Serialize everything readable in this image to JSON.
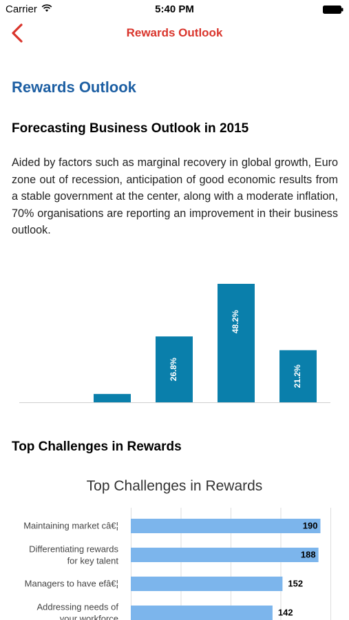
{
  "status_bar": {
    "carrier": "Carrier",
    "time": "5:40 PM"
  },
  "nav": {
    "title": "Rewards Outlook"
  },
  "page": {
    "heading": "Rewards Outlook",
    "section1_title": "Forecasting Business Outlook in 2015",
    "intro_paragraph": "Aided by factors such as marginal recovery in global growth, Euro zone out of recession, anticipation of good economic results from a stable government at the center, along with a moderate inflation, 70% organisations are reporting an improvement in their business outlook.",
    "section2_title": "Top Challenges in Rewards"
  },
  "colors": {
    "accent_red": "#d9342b",
    "heading_blue": "#1d5fa3",
    "bar_teal": "#0a7fab",
    "bar_light_blue": "#7cb5ec"
  },
  "icons": {
    "back": "chevron-left-icon",
    "wifi": "wifi-icon",
    "battery": "battery-icon"
  },
  "chart_data": [
    {
      "type": "bar",
      "categories": [
        "",
        "",
        "",
        "",
        ""
      ],
      "values": [
        0,
        3.4,
        26.8,
        48.2,
        21.2
      ],
      "data_labels": [
        "",
        "",
        "26.8%",
        "48.2%",
        "21.2%"
      ],
      "ylim": [
        0,
        48.2
      ],
      "grid": false
    },
    {
      "type": "bar",
      "orientation": "horizontal",
      "title": "Top Challenges in Rewards",
      "categories": [
        "Maintaining market câ€¦",
        "Differentiating rewards for key talent",
        "Managers to have efâ€¦",
        "Addressing needs of your workforce"
      ],
      "values": [
        190,
        188,
        152,
        142
      ],
      "xlim": [
        0,
        200
      ],
      "grid": true
    }
  ]
}
